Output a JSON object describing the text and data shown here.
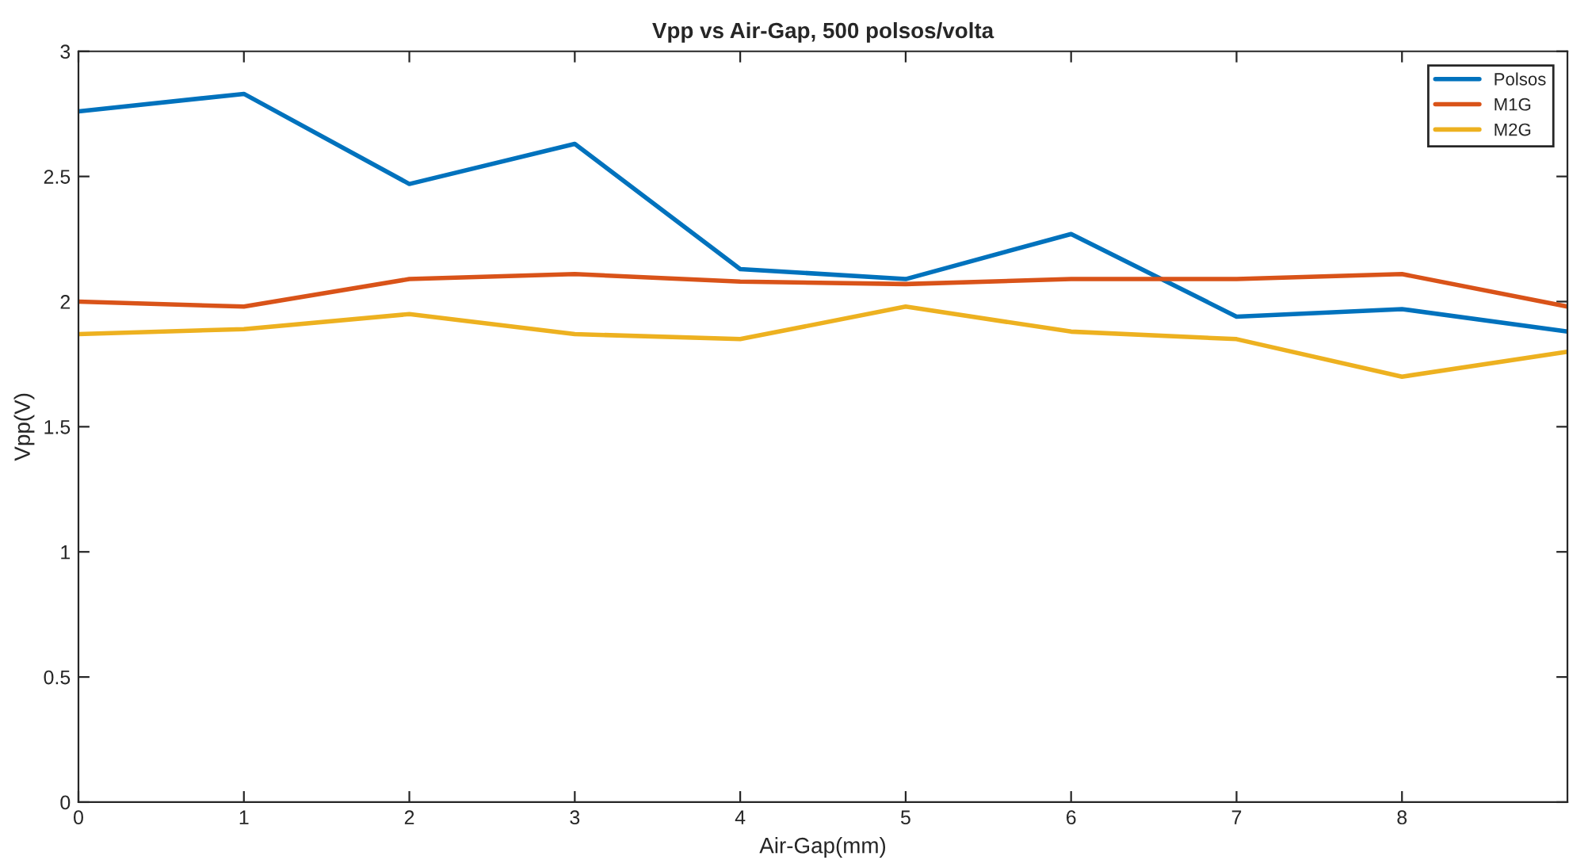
{
  "chart_data": {
    "type": "line",
    "title": "Vpp vs Air-Gap, 500 polsos/volta",
    "xlabel": "Air-Gap(mm)",
    "ylabel": "Vpp(V)",
    "x": [
      0,
      1,
      2,
      3,
      4,
      5,
      6,
      7,
      8,
      9
    ],
    "series": [
      {
        "name": "Polsos",
        "color": "#0072bd",
        "values": [
          2.76,
          2.83,
          2.47,
          2.63,
          2.13,
          2.09,
          2.27,
          1.94,
          1.97,
          1.88
        ]
      },
      {
        "name": "M1G",
        "color": "#d95319",
        "values": [
          2.0,
          1.98,
          2.09,
          2.11,
          2.08,
          2.07,
          2.09,
          2.09,
          2.11,
          1.98
        ]
      },
      {
        "name": "M2G",
        "color": "#edb120",
        "values": [
          1.87,
          1.89,
          1.95,
          1.87,
          1.85,
          1.98,
          1.88,
          1.85,
          1.7,
          1.8
        ]
      }
    ],
    "xlim": [
      0,
      9
    ],
    "xticks": [
      0,
      1,
      2,
      3,
      4,
      5,
      6,
      7,
      8
    ],
    "ylim": [
      0,
      3
    ],
    "yticks": [
      0,
      0.5,
      1,
      1.5,
      2,
      2.5,
      3
    ],
    "grid": false,
    "legend": "top right",
    "marker": "none",
    "line_style": "solid"
  }
}
